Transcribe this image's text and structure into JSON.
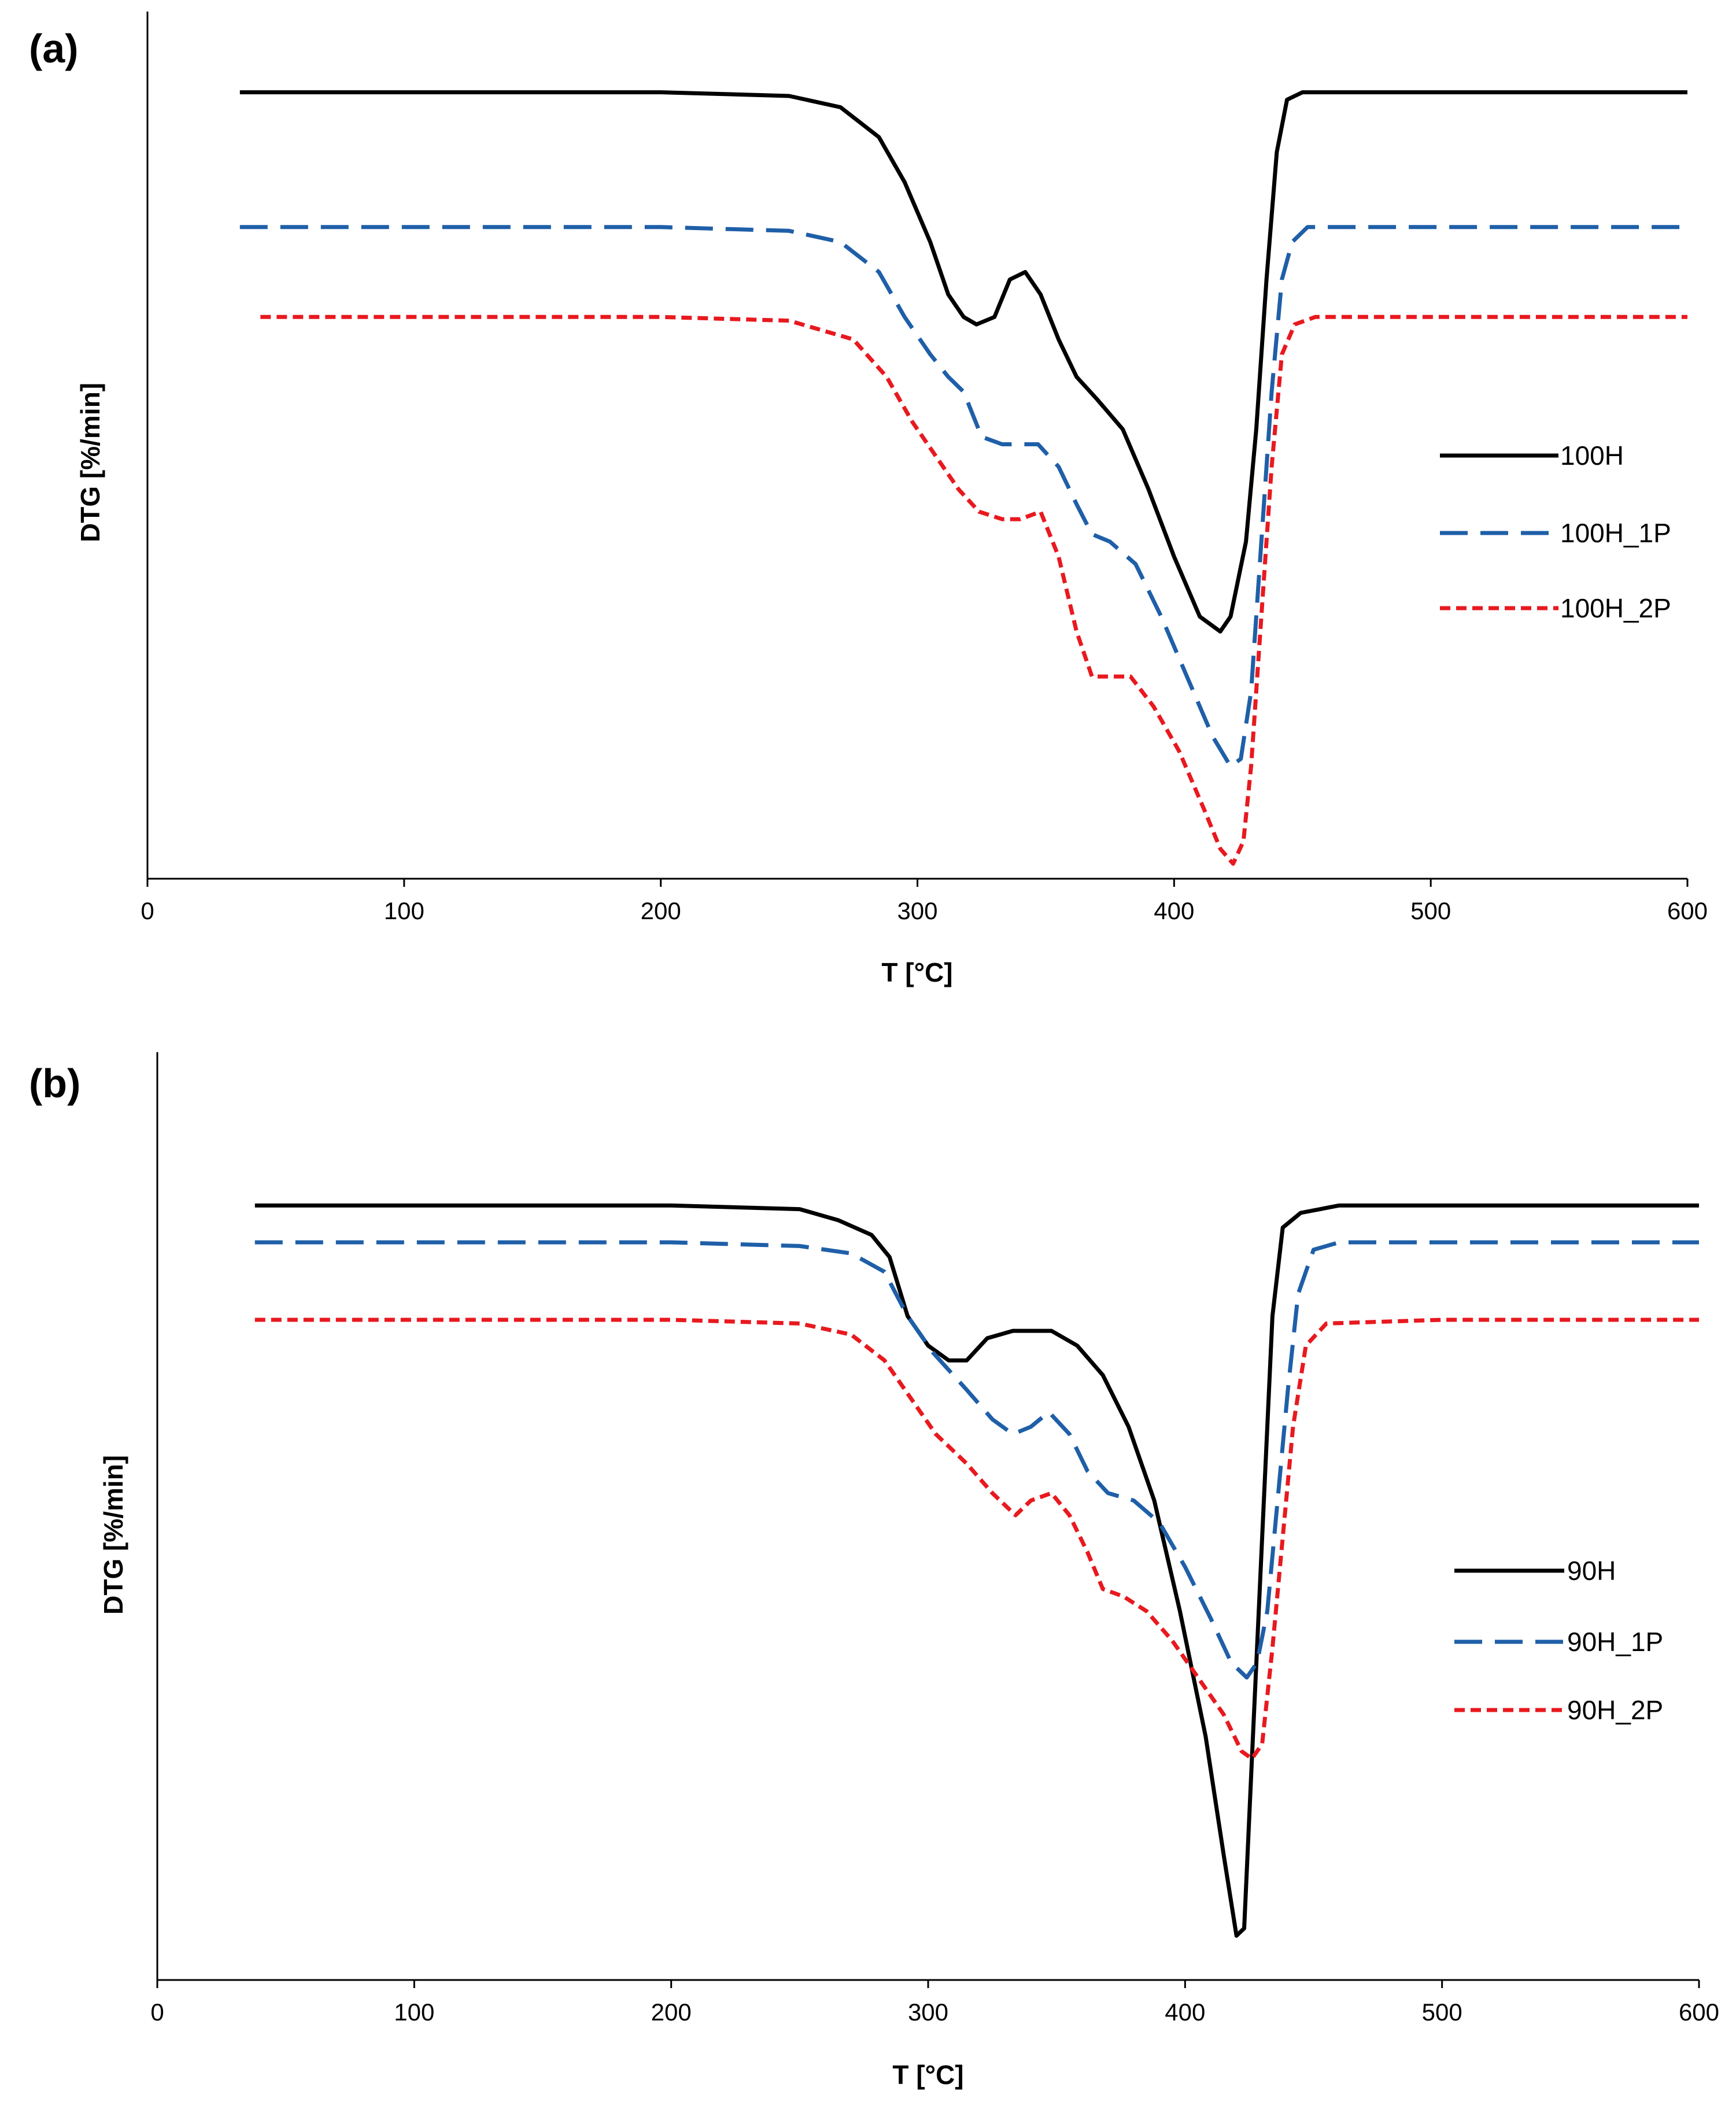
{
  "colors": {
    "black": "#000000",
    "blue": "#1f5fa8",
    "red": "#e8191f"
  },
  "chart_data": [
    {
      "type": "line",
      "panel_label": "(a)",
      "xlabel": "T [°C]",
      "ylabel": "DTG [%/min]",
      "xlim": [
        0,
        600
      ],
      "ylim": [
        -1.05,
        0.1
      ],
      "xticks": [
        "0",
        "100",
        "200",
        "300",
        "400",
        "500",
        "600"
      ],
      "yticks_shown": false,
      "grid": false,
      "legend_position": "right",
      "series": [
        {
          "name": "100H",
          "color": "#000000",
          "dash": "solid",
          "points": [
            [
              36,
              0
            ],
            [
              100,
              0
            ],
            [
              200,
              0
            ],
            [
              250,
              -0.005
            ],
            [
              270,
              -0.02
            ],
            [
              285,
              -0.06
            ],
            [
              295,
              -0.12
            ],
            [
              305,
              -0.2
            ],
            [
              312,
              -0.27
            ],
            [
              318,
              -0.3
            ],
            [
              323,
              -0.31
            ],
            [
              330,
              -0.3
            ],
            [
              336,
              -0.25
            ],
            [
              342,
              -0.24
            ],
            [
              348,
              -0.27
            ],
            [
              355,
              -0.33
            ],
            [
              362,
              -0.38
            ],
            [
              370,
              -0.41
            ],
            [
              380,
              -0.45
            ],
            [
              390,
              -0.53
            ],
            [
              400,
              -0.62
            ],
            [
              410,
              -0.7
            ],
            [
              418,
              -0.72
            ],
            [
              422,
              -0.7
            ],
            [
              428,
              -0.6
            ],
            [
              432,
              -0.45
            ],
            [
              436,
              -0.25
            ],
            [
              440,
              -0.08
            ],
            [
              444,
              -0.01
            ],
            [
              450,
              0
            ],
            [
              500,
              0
            ],
            [
              600,
              0
            ]
          ]
        },
        {
          "name": "100H_1P",
          "color": "#1f5fa8",
          "dash": "longdash",
          "points": [
            [
              36,
              -0.18
            ],
            [
              100,
              -0.18
            ],
            [
              200,
              -0.18
            ],
            [
              250,
              -0.185
            ],
            [
              270,
              -0.2
            ],
            [
              285,
              -0.24
            ],
            [
              295,
              -0.3
            ],
            [
              305,
              -0.35
            ],
            [
              312,
              -0.38
            ],
            [
              318,
              -0.4
            ],
            [
              325,
              -0.46
            ],
            [
              333,
              -0.47
            ],
            [
              340,
              -0.47
            ],
            [
              347,
              -0.47
            ],
            [
              355,
              -0.5
            ],
            [
              362,
              -0.55
            ],
            [
              368,
              -0.59
            ],
            [
              375,
              -0.6
            ],
            [
              385,
              -0.63
            ],
            [
              395,
              -0.7
            ],
            [
              405,
              -0.78
            ],
            [
              415,
              -0.86
            ],
            [
              422,
              -0.9
            ],
            [
              426,
              -0.89
            ],
            [
              430,
              -0.8
            ],
            [
              434,
              -0.6
            ],
            [
              438,
              -0.4
            ],
            [
              442,
              -0.25
            ],
            [
              446,
              -0.2
            ],
            [
              452,
              -0.18
            ],
            [
              500,
              -0.18
            ],
            [
              600,
              -0.18
            ]
          ]
        },
        {
          "name": "100H_2P",
          "color": "#e8191f",
          "dash": "shortdash",
          "points": [
            [
              44,
              -0.3
            ],
            [
              100,
              -0.3
            ],
            [
              200,
              -0.3
            ],
            [
              250,
              -0.305
            ],
            [
              275,
              -0.33
            ],
            [
              288,
              -0.38
            ],
            [
              298,
              -0.44
            ],
            [
              308,
              -0.49
            ],
            [
              316,
              -0.53
            ],
            [
              324,
              -0.56
            ],
            [
              333,
              -0.57
            ],
            [
              340,
              -0.57
            ],
            [
              348,
              -0.56
            ],
            [
              355,
              -0.62
            ],
            [
              362,
              -0.72
            ],
            [
              368,
              -0.78
            ],
            [
              375,
              -0.78
            ],
            [
              383,
              -0.78
            ],
            [
              392,
              -0.82
            ],
            [
              402,
              -0.88
            ],
            [
              412,
              -0.96
            ],
            [
              418,
              -1.01
            ],
            [
              423,
              -1.03
            ],
            [
              427,
              -1.0
            ],
            [
              430,
              -0.9
            ],
            [
              434,
              -0.7
            ],
            [
              438,
              -0.5
            ],
            [
              442,
              -0.35
            ],
            [
              447,
              -0.31
            ],
            [
              455,
              -0.3
            ],
            [
              500,
              -0.3
            ],
            [
              600,
              -0.3
            ]
          ]
        }
      ]
    },
    {
      "type": "line",
      "panel_label": "(b)",
      "xlabel": "T [°C]",
      "ylabel": "DTG [%/min]",
      "xlim": [
        0,
        600
      ],
      "ylim": [
        -1.05,
        0.2
      ],
      "xticks": [
        "0",
        "100",
        "200",
        "300",
        "400",
        "500",
        "600"
      ],
      "yticks_shown": false,
      "grid": false,
      "legend_position": "right",
      "series": [
        {
          "name": "90H",
          "color": "#000000",
          "dash": "solid",
          "points": [
            [
              38,
              0
            ],
            [
              100,
              0
            ],
            [
              200,
              0
            ],
            [
              250,
              -0.005
            ],
            [
              265,
              -0.02
            ],
            [
              278,
              -0.04
            ],
            [
              285,
              -0.07
            ],
            [
              292,
              -0.15
            ],
            [
              300,
              -0.19
            ],
            [
              308,
              -0.21
            ],
            [
              315,
              -0.21
            ],
            [
              323,
              -0.18
            ],
            [
              333,
              -0.17
            ],
            [
              340,
              -0.17
            ],
            [
              348,
              -0.17
            ],
            [
              358,
              -0.19
            ],
            [
              368,
              -0.23
            ],
            [
              378,
              -0.3
            ],
            [
              388,
              -0.4
            ],
            [
              398,
              -0.55
            ],
            [
              408,
              -0.72
            ],
            [
              415,
              -0.88
            ],
            [
              420,
              -0.99
            ],
            [
              423,
              -0.98
            ],
            [
              426,
              -0.75
            ],
            [
              430,
              -0.45
            ],
            [
              434,
              -0.15
            ],
            [
              438,
              -0.03
            ],
            [
              445,
              -0.01
            ],
            [
              460,
              0
            ],
            [
              500,
              0
            ],
            [
              600,
              0
            ]
          ]
        },
        {
          "name": "90H_1P",
          "color": "#1f5fa8",
          "dash": "longdash",
          "points": [
            [
              38,
              -0.05
            ],
            [
              100,
              -0.05
            ],
            [
              200,
              -0.05
            ],
            [
              250,
              -0.055
            ],
            [
              270,
              -0.065
            ],
            [
              283,
              -0.09
            ],
            [
              292,
              -0.15
            ],
            [
              302,
              -0.2
            ],
            [
              315,
              -0.25
            ],
            [
              325,
              -0.29
            ],
            [
              333,
              -0.31
            ],
            [
              340,
              -0.3
            ],
            [
              347,
              -0.28
            ],
            [
              355,
              -0.31
            ],
            [
              362,
              -0.36
            ],
            [
              370,
              -0.39
            ],
            [
              380,
              -0.4
            ],
            [
              390,
              -0.43
            ],
            [
              400,
              -0.49
            ],
            [
              410,
              -0.56
            ],
            [
              418,
              -0.62
            ],
            [
              424,
              -0.64
            ],
            [
              428,
              -0.62
            ],
            [
              432,
              -0.55
            ],
            [
              436,
              -0.4
            ],
            [
              440,
              -0.25
            ],
            [
              444,
              -0.12
            ],
            [
              450,
              -0.06
            ],
            [
              460,
              -0.05
            ],
            [
              500,
              -0.05
            ],
            [
              600,
              -0.05
            ]
          ]
        },
        {
          "name": "90H_2P",
          "color": "#e8191f",
          "dash": "shortdash",
          "points": [
            [
              38,
              -0.155
            ],
            [
              100,
              -0.155
            ],
            [
              200,
              -0.155
            ],
            [
              250,
              -0.16
            ],
            [
              270,
              -0.175
            ],
            [
              283,
              -0.21
            ],
            [
              293,
              -0.26
            ],
            [
              303,
              -0.31
            ],
            [
              315,
              -0.35
            ],
            [
              325,
              -0.39
            ],
            [
              334,
              -0.42
            ],
            [
              340,
              -0.4
            ],
            [
              348,
              -0.39
            ],
            [
              355,
              -0.42
            ],
            [
              362,
              -0.47
            ],
            [
              368,
              -0.52
            ],
            [
              376,
              -0.53
            ],
            [
              385,
              -0.55
            ],
            [
              395,
              -0.59
            ],
            [
              405,
              -0.64
            ],
            [
              415,
              -0.69
            ],
            [
              422,
              -0.74
            ],
            [
              426,
              -0.75
            ],
            [
              430,
              -0.73
            ],
            [
              434,
              -0.6
            ],
            [
              438,
              -0.45
            ],
            [
              442,
              -0.3
            ],
            [
              447,
              -0.19
            ],
            [
              455,
              -0.16
            ],
            [
              500,
              -0.155
            ],
            [
              600,
              -0.155
            ]
          ]
        }
      ]
    }
  ]
}
